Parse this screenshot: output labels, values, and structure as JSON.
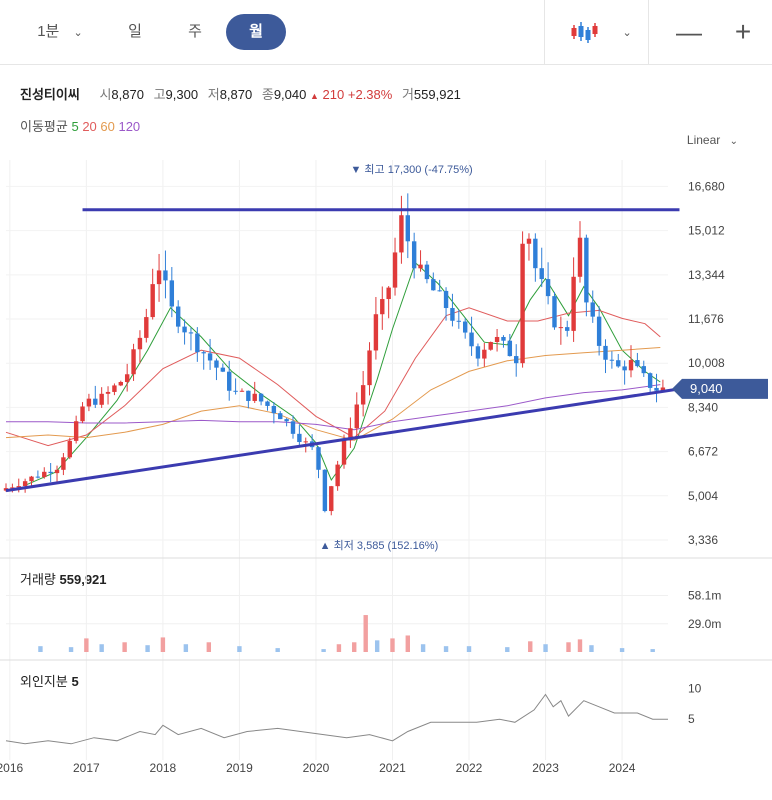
{
  "toolbar": {
    "interval": "1분",
    "tabs": [
      "일",
      "주",
      "월"
    ],
    "active_tab": "월",
    "chart_type_icon": "candlestick-icon",
    "zoom_out_icon": "minus-icon",
    "zoom_in_icon": "plus-icon"
  },
  "quote": {
    "name": "진성티이씨",
    "open_label": "시",
    "open": "8,870",
    "high_label": "고",
    "high": "9,300",
    "low_label": "저",
    "low": "8,870",
    "close_label": "종",
    "close": "9,040",
    "change": "210",
    "change_pct": "+2.38%",
    "volume_label": "거",
    "volume": "559,921"
  },
  "moving_average": {
    "label": "이동평균",
    "periods": [
      {
        "value": "5",
        "color": "#2e9e3a"
      },
      {
        "value": "20",
        "color": "#e05c5c"
      },
      {
        "value": "60",
        "color": "#e39a4f"
      },
      {
        "value": "120",
        "color": "#9b59c9"
      }
    ]
  },
  "scale_mode": "Linear",
  "current_price_tag": "9,040",
  "colors": {
    "up": "#e03a3a",
    "down": "#2f7fd8",
    "trendline": "#3b3bb0",
    "accent": "#3d5a9a"
  },
  "chart_data": {
    "type": "candlestick",
    "x_ticks": [
      "2016",
      "2017",
      "2018",
      "2019",
      "2020",
      "2021",
      "2022",
      "2023",
      "2024"
    ],
    "y_ticks": [
      "16,680",
      "15,012",
      "13,344",
      "11,676",
      "10,008",
      "8,340",
      "6,672",
      "5,004",
      "3,336"
    ],
    "ylim": [
      3336,
      17300
    ],
    "highest": {
      "label": "최고",
      "value": "17,300",
      "pct": "(-47.75%)",
      "x": 2021.25
    },
    "lowest": {
      "label": "최저",
      "value": "3,585",
      "pct": "(152.16%)",
      "x": 2020.17
    },
    "prices": [
      [
        2015.95,
        5200
      ],
      [
        2016.3,
        5600
      ],
      [
        2016.7,
        6100
      ],
      [
        2016.9,
        7200
      ],
      [
        2017.05,
        8500
      ],
      [
        2017.3,
        8700
      ],
      [
        2017.6,
        9500
      ],
      [
        2017.85,
        11500
      ],
      [
        2018.0,
        14000
      ],
      [
        2018.2,
        12000
      ],
      [
        2018.5,
        10800
      ],
      [
        2018.8,
        9800
      ],
      [
        2019.0,
        8900
      ],
      [
        2019.3,
        8700
      ],
      [
        2019.6,
        8100
      ],
      [
        2019.9,
        7100
      ],
      [
        2020.1,
        6600
      ],
      [
        2020.17,
        4200
      ],
      [
        2020.3,
        5600
      ],
      [
        2020.5,
        7400
      ],
      [
        2020.7,
        9200
      ],
      [
        2020.85,
        11600
      ],
      [
        2021.0,
        12400
      ],
      [
        2021.2,
        15400
      ],
      [
        2021.4,
        13600
      ],
      [
        2021.6,
        12800
      ],
      [
        2021.8,
        12100
      ],
      [
        2022.0,
        11100
      ],
      [
        2022.2,
        10400
      ],
      [
        2022.4,
        11000
      ],
      [
        2022.55,
        10600
      ],
      [
        2022.7,
        10200
      ],
      [
        2022.8,
        15800
      ],
      [
        2022.95,
        13600
      ],
      [
        2023.1,
        12400
      ],
      [
        2023.25,
        11200
      ],
      [
        2023.4,
        11400
      ],
      [
        2023.5,
        15600
      ],
      [
        2023.6,
        12400
      ],
      [
        2023.8,
        10600
      ],
      [
        2024.0,
        9800
      ],
      [
        2024.2,
        10000
      ],
      [
        2024.35,
        9500
      ],
      [
        2024.5,
        9040
      ]
    ],
    "ma5": [
      [
        2016.2,
        5400
      ],
      [
        2016.6,
        5900
      ],
      [
        2017.0,
        7200
      ],
      [
        2017.4,
        8600
      ],
      [
        2017.8,
        10500
      ],
      [
        2018.1,
        12100
      ],
      [
        2018.5,
        11000
      ],
      [
        2018.9,
        9700
      ],
      [
        2019.3,
        8800
      ],
      [
        2019.7,
        8000
      ],
      [
        2020.0,
        7000
      ],
      [
        2020.2,
        5600
      ],
      [
        2020.5,
        6800
      ],
      [
        2020.8,
        9400
      ],
      [
        2021.0,
        11300
      ],
      [
        2021.3,
        13800
      ],
      [
        2021.6,
        13000
      ],
      [
        2021.9,
        11900
      ],
      [
        2022.2,
        10800
      ],
      [
        2022.5,
        10700
      ],
      [
        2022.8,
        12400
      ],
      [
        2023.0,
        13200
      ],
      [
        2023.3,
        11800
      ],
      [
        2023.5,
        12900
      ],
      [
        2023.7,
        12100
      ],
      [
        2024.0,
        10500
      ],
      [
        2024.3,
        9700
      ],
      [
        2024.5,
        9300
      ]
    ],
    "ma20": [
      [
        2015.95,
        7400
      ],
      [
        2016.5,
        6900
      ],
      [
        2017.0,
        7300
      ],
      [
        2017.5,
        8400
      ],
      [
        2018.0,
        9800
      ],
      [
        2018.5,
        10500
      ],
      [
        2019.0,
        10200
      ],
      [
        2019.5,
        9200
      ],
      [
        2020.0,
        8000
      ],
      [
        2020.5,
        7200
      ],
      [
        2020.9,
        8200
      ],
      [
        2021.3,
        10200
      ],
      [
        2021.7,
        11800
      ],
      [
        2022.0,
        12100
      ],
      [
        2022.5,
        11600
      ],
      [
        2022.9,
        11600
      ],
      [
        2023.3,
        11900
      ],
      [
        2023.7,
        12000
      ],
      [
        2024.0,
        11700
      ],
      [
        2024.3,
        11500
      ],
      [
        2024.5,
        11000
      ]
    ],
    "ma60": [
      [
        2015.95,
        7200
      ],
      [
        2016.5,
        7300
      ],
      [
        2017.0,
        7200
      ],
      [
        2017.5,
        7400
      ],
      [
        2018.0,
        7700
      ],
      [
        2018.5,
        8200
      ],
      [
        2019.0,
        8400
      ],
      [
        2019.5,
        8100
      ],
      [
        2020.0,
        7500
      ],
      [
        2020.5,
        7100
      ],
      [
        2021.0,
        7900
      ],
      [
        2021.5,
        9000
      ],
      [
        2022.0,
        9700
      ],
      [
        2022.5,
        10100
      ],
      [
        2023.0,
        10300
      ],
      [
        2023.5,
        10400
      ],
      [
        2024.0,
        10500
      ],
      [
        2024.5,
        10600
      ]
    ],
    "ma120": [
      [
        2015.95,
        7800
      ],
      [
        2016.5,
        7800
      ],
      [
        2017.0,
        7750
      ],
      [
        2017.5,
        7750
      ],
      [
        2018.0,
        7800
      ],
      [
        2018.5,
        7850
      ],
      [
        2019.0,
        7800
      ],
      [
        2019.5,
        7800
      ],
      [
        2020.0,
        7700
      ],
      [
        2020.5,
        7500
      ],
      [
        2021.0,
        7800
      ],
      [
        2021.5,
        8000
      ],
      [
        2022.0,
        8200
      ],
      [
        2022.5,
        8400
      ],
      [
        2023.0,
        8700
      ],
      [
        2023.5,
        8900
      ],
      [
        2024.0,
        9000
      ],
      [
        2024.5,
        9200
      ]
    ],
    "resistance_line": [
      [
        2016.95,
        15800
      ],
      [
        2024.75,
        15800
      ]
    ],
    "support_line": [
      [
        2015.95,
        5200
      ],
      [
        2024.75,
        9040
      ]
    ],
    "volume": {
      "label": "거래량",
      "value": "559,921",
      "y_ticks": [
        "58.1m",
        "29.0m"
      ],
      "ylim": [
        0,
        72
      ],
      "bars": [
        [
          2016.4,
          6,
          "down"
        ],
        [
          2016.8,
          5,
          "down"
        ],
        [
          2017.0,
          14,
          "up"
        ],
        [
          2017.2,
          8,
          "down"
        ],
        [
          2017.5,
          10,
          "up"
        ],
        [
          2017.8,
          7,
          "down"
        ],
        [
          2018.0,
          15,
          "up"
        ],
        [
          2018.3,
          8,
          "down"
        ],
        [
          2018.6,
          10,
          "up"
        ],
        [
          2019.0,
          6,
          "down"
        ],
        [
          2019.5,
          4,
          "down"
        ],
        [
          2020.1,
          3,
          "down"
        ],
        [
          2020.3,
          8,
          "up"
        ],
        [
          2020.5,
          10,
          "up"
        ],
        [
          2020.65,
          38,
          "up"
        ],
        [
          2020.8,
          12,
          "down"
        ],
        [
          2021.0,
          14,
          "up"
        ],
        [
          2021.2,
          17,
          "up"
        ],
        [
          2021.4,
          8,
          "down"
        ],
        [
          2021.7,
          6,
          "down"
        ],
        [
          2022.0,
          6,
          "down"
        ],
        [
          2022.5,
          5,
          "down"
        ],
        [
          2022.8,
          11,
          "up"
        ],
        [
          2023.0,
          8,
          "down"
        ],
        [
          2023.3,
          10,
          "up"
        ],
        [
          2023.45,
          13,
          "up"
        ],
        [
          2023.6,
          7,
          "down"
        ],
        [
          2024.0,
          4,
          "down"
        ],
        [
          2024.4,
          3,
          "down"
        ]
      ]
    },
    "foreign_ratio": {
      "label": "외인지분",
      "value": "5",
      "y_ticks": [
        "10",
        "5"
      ],
      "ylim": [
        0,
        12
      ],
      "points": [
        [
          2015.95,
          1.5
        ],
        [
          2016.2,
          1.0
        ],
        [
          2016.5,
          1.5
        ],
        [
          2016.8,
          1.0
        ],
        [
          2017.1,
          2.0
        ],
        [
          2017.4,
          1.5
        ],
        [
          2017.7,
          3.0
        ],
        [
          2017.9,
          2.5
        ],
        [
          2018.0,
          4.0
        ],
        [
          2018.2,
          2.5
        ],
        [
          2018.5,
          3.5
        ],
        [
          2018.8,
          2.0
        ],
        [
          2019.1,
          3.0
        ],
        [
          2019.5,
          3.5
        ],
        [
          2019.8,
          3.0
        ],
        [
          2020.1,
          2.5
        ],
        [
          2020.4,
          2.0
        ],
        [
          2020.7,
          2.5
        ],
        [
          2021.0,
          1.5
        ],
        [
          2021.2,
          3.0
        ],
        [
          2021.5,
          4.5
        ],
        [
          2021.8,
          4.5
        ],
        [
          2022.1,
          4.5
        ],
        [
          2022.4,
          5.0
        ],
        [
          2022.6,
          4.5
        ],
        [
          2022.85,
          6.5
        ],
        [
          2023.0,
          9.0
        ],
        [
          2023.1,
          7.0
        ],
        [
          2023.2,
          8.0
        ],
        [
          2023.3,
          5.5
        ],
        [
          2023.5,
          8.0
        ],
        [
          2023.7,
          7.0
        ],
        [
          2023.9,
          6.0
        ],
        [
          2024.2,
          6.0
        ],
        [
          2024.4,
          5.0
        ],
        [
          2024.6,
          5.0
        ]
      ]
    }
  }
}
